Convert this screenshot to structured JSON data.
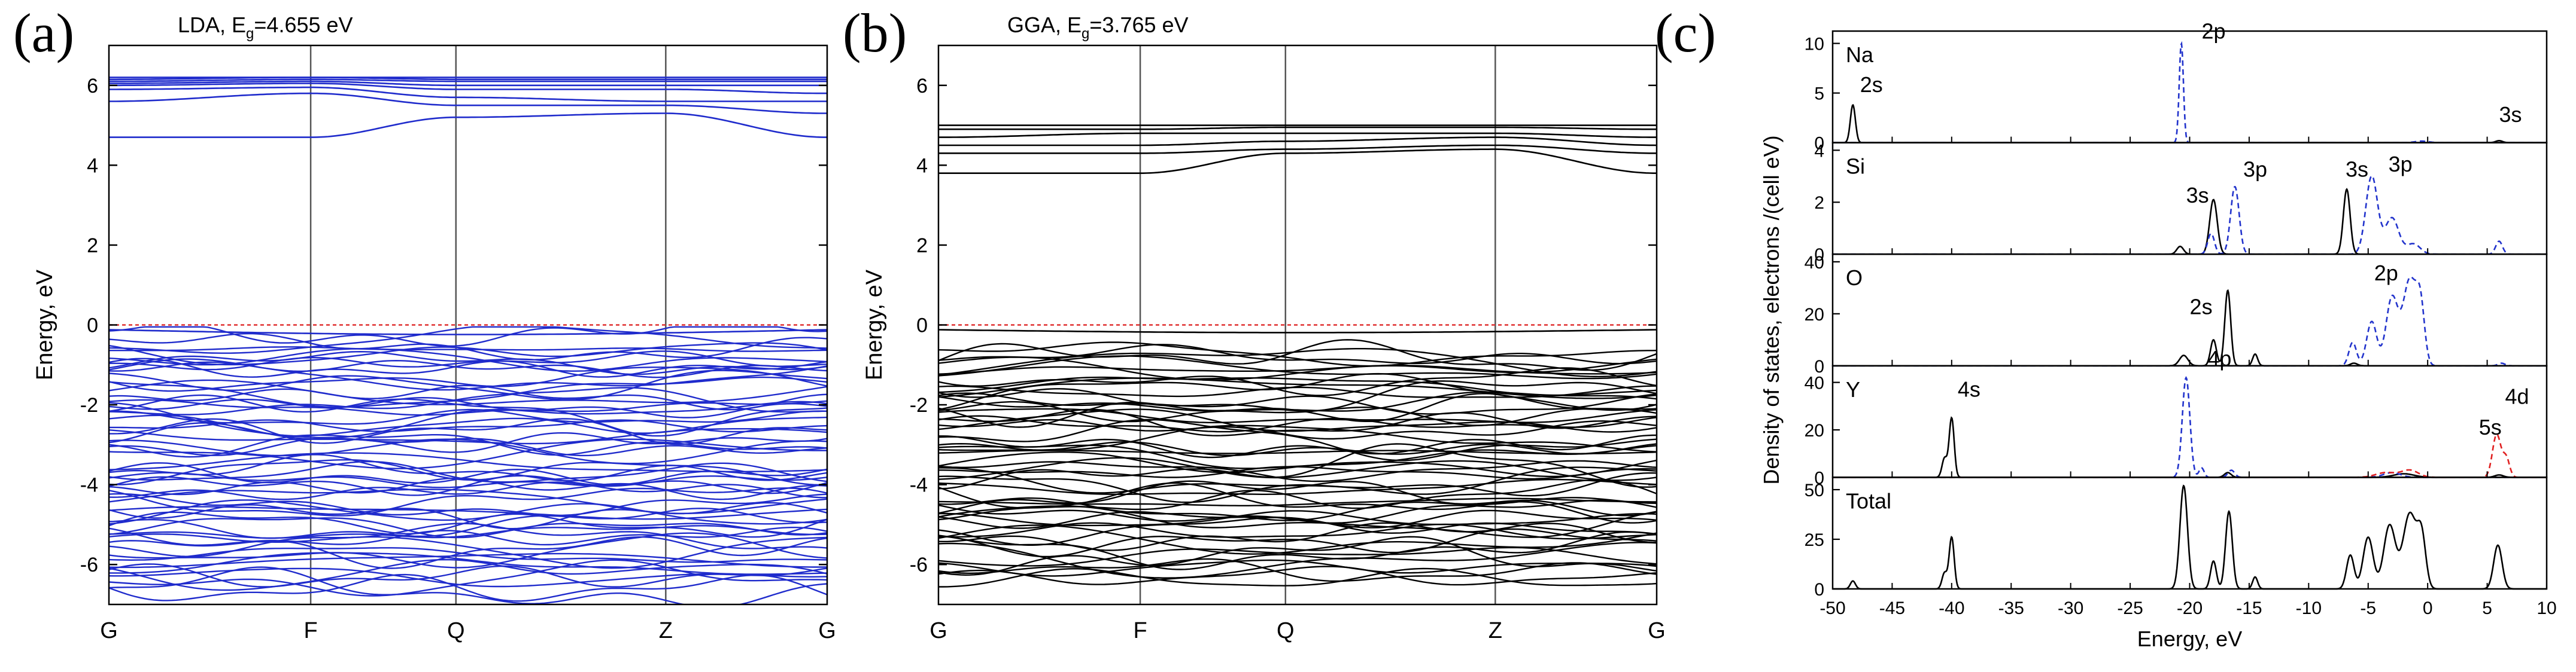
{
  "colors": {
    "lda_bands": "#1f2bcc",
    "gga_bands": "#000000",
    "fermi": "#e03030",
    "kpath_lines": "#555555",
    "dos_s": "#000000",
    "dos_p": "#2233cc",
    "dos_d": "#e02020"
  },
  "chart_data": [
    {
      "type": "line",
      "panel_label": "(a)",
      "title_prefix": "LDA, E",
      "title_sub": "g",
      "title_suffix": "=4.655 eV",
      "ylabel": "Energy, eV",
      "xlabel": "",
      "x_ticks": [
        "G",
        "F",
        "Q",
        "Z",
        "G"
      ],
      "kpath_positions": [
        0,
        1.0,
        1.72,
        2.76,
        3.56
      ],
      "y_ticks": [
        -6,
        -4,
        -2,
        0,
        2,
        4,
        6
      ],
      "ylim": [
        -7,
        7
      ],
      "fermi_level": 0,
      "band_color": "lda_bands",
      "conduction_bands": {
        "values_at_kpoints": [
          [
            4.7,
            4.7,
            5.2,
            5.3,
            4.7
          ],
          [
            5.6,
            5.8,
            5.5,
            5.5,
            5.3
          ],
          [
            5.9,
            5.95,
            5.7,
            5.6,
            5.6
          ],
          [
            6.0,
            6.05,
            5.9,
            5.9,
            5.8
          ],
          [
            6.05,
            6.1,
            6.0,
            6.0,
            6.0
          ],
          [
            6.1,
            6.15,
            6.1,
            6.1,
            6.1
          ],
          [
            6.15,
            6.2,
            6.15,
            6.15,
            6.15
          ],
          [
            6.2,
            6.2,
            6.2,
            6.2,
            6.2
          ]
        ]
      },
      "valence_band_top": 0,
      "valence_range": [
        -6.6,
        -0.3
      ],
      "valence_band_count": 64
    },
    {
      "type": "line",
      "panel_label": "(b)",
      "title_prefix": "GGA, E",
      "title_sub": "g",
      "title_suffix": "=3.765 eV",
      "ylabel": "Energy, eV",
      "xlabel": "",
      "x_ticks": [
        "G",
        "F",
        "Q",
        "Z",
        "G"
      ],
      "kpath_positions": [
        0,
        1.0,
        1.72,
        2.76,
        3.56
      ],
      "y_ticks": [
        -6,
        -4,
        -2,
        0,
        2,
        4,
        6
      ],
      "ylim": [
        -7,
        7
      ],
      "fermi_level": 0,
      "band_color": "gga_bands",
      "conduction_bands": {
        "values_at_kpoints": [
          [
            3.8,
            3.8,
            4.3,
            4.4,
            3.8
          ],
          [
            4.3,
            4.3,
            4.4,
            4.5,
            4.3
          ],
          [
            4.5,
            4.5,
            4.6,
            4.7,
            4.5
          ],
          [
            4.7,
            4.8,
            4.8,
            4.8,
            4.7
          ],
          [
            4.9,
            4.9,
            4.95,
            4.95,
            4.9
          ],
          [
            5.0,
            5.0,
            5.0,
            5.0,
            5.0
          ]
        ]
      },
      "valence_band_top": 0,
      "valence_range": [
        -6.3,
        -0.6
      ],
      "valence_band_count": 58
    },
    {
      "type": "line",
      "panel_label": "(c)",
      "ylabel": "Density of states, electrons /(cell eV)",
      "xlabel": "Energy, eV",
      "xlim": [
        -50,
        10
      ],
      "x_ticks": [
        -50,
        -45,
        -40,
        -35,
        -30,
        -25,
        -20,
        -15,
        -10,
        -5,
        0,
        5,
        10
      ],
      "subplots": [
        {
          "name": "Na",
          "ylim": [
            0,
            11
          ],
          "y_ticks": [
            0,
            5,
            10
          ],
          "annotations": [
            {
              "text": "2s",
              "x": -48.2,
              "y": 4.6
            },
            {
              "text": "2p",
              "x": -19.5,
              "y": 10.0
            },
            {
              "text": "3s",
              "x": 5.5,
              "y": 1.6
            }
          ],
          "series": [
            {
              "orbital": "s",
              "color": "dos_s",
              "peaks": [
                [
                  -48.3,
                  3.8,
                  0.3
                ],
                [
                  6.0,
                  0.2,
                  0.4
                ]
              ]
            },
            {
              "orbital": "p",
              "color": "dos_p",
              "dash": true,
              "peaks": [
                [
                  -20.7,
                  10.0,
                  0.25
                ],
                [
                  -0.5,
                  0.15,
                  0.8
                ]
              ]
            }
          ]
        },
        {
          "name": "Si",
          "ylim": [
            0,
            4.2
          ],
          "y_ticks": [
            0,
            2,
            4
          ],
          "annotations": [
            {
              "text": "3s",
              "x": -20.8,
              "y": 1.8
            },
            {
              "text": "3p",
              "x": -16.0,
              "y": 2.8
            },
            {
              "text": "3s",
              "x": -7.4,
              "y": 2.8
            },
            {
              "text": "3p",
              "x": -3.8,
              "y": 3.0
            }
          ],
          "series": [
            {
              "orbital": "s",
              "color": "dos_s",
              "peaks": [
                [
                  -20.8,
                  0.3,
                  0.4
                ],
                [
                  -18.0,
                  2.1,
                  0.45
                ],
                [
                  -6.8,
                  2.5,
                  0.4
                ]
              ]
            },
            {
              "orbital": "p",
              "color": "dos_p",
              "dash": true,
              "peaks": [
                [
                  -18.2,
                  0.8,
                  0.4
                ],
                [
                  -16.2,
                  2.6,
                  0.5
                ],
                [
                  -4.7,
                  3.0,
                  0.7
                ],
                [
                  -3.0,
                  1.4,
                  0.8
                ],
                [
                  -1.2,
                  0.4,
                  0.8
                ],
                [
                  6.0,
                  0.5,
                  0.4
                ]
              ]
            }
          ]
        },
        {
          "name": "O",
          "ylim": [
            0,
            42
          ],
          "y_ticks": [
            0,
            20,
            40
          ],
          "annotations": [
            {
              "text": "2s",
              "x": -20.5,
              "y": 18
            },
            {
              "text": "2p",
              "x": -5.0,
              "y": 31
            }
          ],
          "series": [
            {
              "orbital": "s",
              "color": "dos_s",
              "peaks": [
                [
                  -20.5,
                  4.0,
                  0.5
                ],
                [
                  -18.0,
                  10.0,
                  0.35
                ],
                [
                  -16.8,
                  29.0,
                  0.35
                ],
                [
                  -14.5,
                  4.5,
                  0.3
                ],
                [
                  -6.2,
                  1.0,
                  0.4
                ]
              ]
            },
            {
              "orbital": "p",
              "color": "dos_p",
              "dash": true,
              "peaks": [
                [
                  -6.3,
                  9.0,
                  0.45
                ],
                [
                  -4.7,
                  17.0,
                  0.6
                ],
                [
                  -3.0,
                  26.0,
                  0.7
                ],
                [
                  -1.5,
                  33.0,
                  0.8
                ],
                [
                  -0.6,
                  20.0,
                  0.5
                ],
                [
                  6.2,
                  1.0,
                  0.4
                ]
              ]
            }
          ]
        },
        {
          "name": "Y",
          "ylim": [
            0,
            46
          ],
          "y_ticks": [
            0,
            20,
            40
          ],
          "annotations": [
            {
              "text": "4s",
              "x": -40.0,
              "y": 32
            },
            {
              "text": "4p",
              "x": -19.0,
              "y": 45
            },
            {
              "text": "4d",
              "x": 6.0,
              "y": 29
            },
            {
              "text": "5s",
              "x": 3.8,
              "y": 16
            }
          ],
          "series": [
            {
              "orbital": "s",
              "color": "dos_s",
              "peaks": [
                [
                  -40.6,
                  8.0,
                  0.3
                ],
                [
                  -40.0,
                  25.0,
                  0.3
                ],
                [
                  -16.8,
                  2.0,
                  0.4
                ],
                [
                  -2.0,
                  1.5,
                  1.2
                ],
                [
                  6.0,
                  1.0,
                  0.5
                ]
              ]
            },
            {
              "orbital": "p",
              "color": "dos_p",
              "dash": true,
              "peaks": [
                [
                  -20.3,
                  42.0,
                  0.45
                ],
                [
                  -19.0,
                  4.0,
                  0.3
                ],
                [
                  -16.5,
                  3.0,
                  0.4
                ],
                [
                  -3.0,
                  2.0,
                  1.0
                ]
              ]
            },
            {
              "orbital": "d",
              "color": "dos_d",
              "dash": true,
              "peaks": [
                [
                  -3.5,
                  2.0,
                  1.2
                ],
                [
                  -1.5,
                  3.0,
                  1.0
                ],
                [
                  5.8,
                  18.0,
                  0.5
                ],
                [
                  6.6,
                  8.0,
                  0.4
                ]
              ]
            }
          ]
        },
        {
          "name": "Total",
          "ylim": [
            0,
            55
          ],
          "y_ticks": [
            0,
            25,
            50
          ],
          "annotations": [],
          "series": [
            {
              "orbital": "total",
              "color": "dos_s",
              "peaks": [
                [
                  -48.3,
                  4.0,
                  0.3
                ],
                [
                  -40.6,
                  8.0,
                  0.3
                ],
                [
                  -40.0,
                  26.0,
                  0.3
                ],
                [
                  -20.5,
                  52.0,
                  0.45
                ],
                [
                  -18.0,
                  14.0,
                  0.35
                ],
                [
                  -16.7,
                  39.0,
                  0.4
                ],
                [
                  -14.5,
                  6.0,
                  0.3
                ],
                [
                  -6.5,
                  17.0,
                  0.45
                ],
                [
                  -5.0,
                  26.0,
                  0.6
                ],
                [
                  -3.2,
                  32.0,
                  0.7
                ],
                [
                  -1.5,
                  38.0,
                  0.8
                ],
                [
                  -0.5,
                  24.0,
                  0.5
                ],
                [
                  5.9,
                  22.0,
                  0.5
                ]
              ]
            }
          ]
        }
      ]
    }
  ]
}
